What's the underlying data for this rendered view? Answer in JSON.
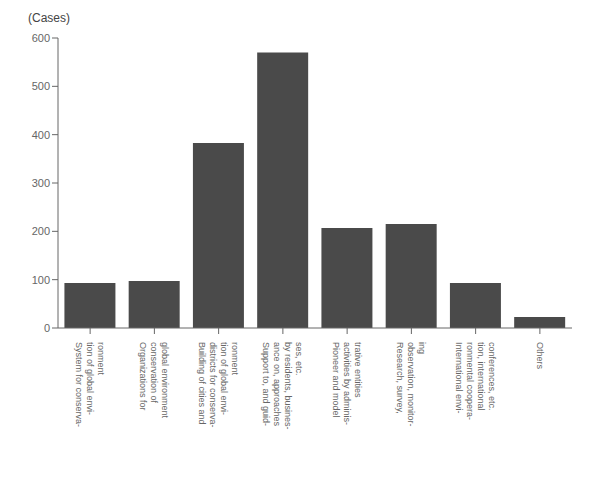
{
  "chart_data": {
    "type": "bar",
    "categories": [
      "System for conserva-\ntion of global envi-\nronment",
      "Organizations for\nconservation of\nglobal environment",
      "Building of cities and\ndistricts for conserva-\ntion of global envi-\nronment",
      "Support to, and guid-\nance on, approaches\nby residents, busines-\nses, etc.",
      "Pioneer and model\nactivities by adminis-\ntrative entities",
      "Research, survey,\nobservation, monitor-\ning",
      "International envi-\nronmental coopera-\ntion, international\nconferences, etc.",
      "Others"
    ],
    "values": [
      93,
      97,
      383,
      570,
      207,
      215,
      93,
      23
    ],
    "color": "#4a4a4a",
    "ylabel": "(Cases)",
    "ylim": [
      0,
      600
    ],
    "yticks": [
      0,
      100,
      200,
      300,
      400,
      500,
      600
    ],
    "grid": false
  }
}
